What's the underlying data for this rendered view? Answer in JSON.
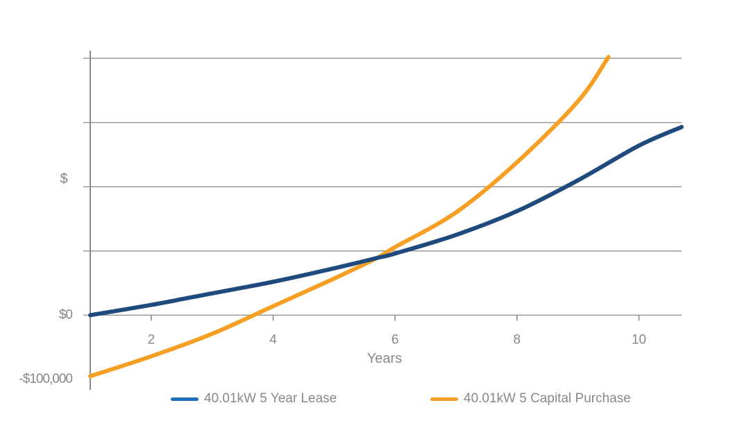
{
  "chart_data": {
    "type": "line",
    "xlabel": "Years",
    "ylabel": "$",
    "xlim": [
      1,
      10.7
    ],
    "ylim": [
      -100000,
      400000
    ],
    "x_ticks": [
      2,
      4,
      6,
      8,
      10
    ],
    "y_tick_labels": [
      {
        "value": 0,
        "label": "$0"
      },
      {
        "value": -100000,
        "label": "-$100,000"
      }
    ],
    "y_gridlines": [
      0,
      100000,
      200000,
      300000,
      400000
    ],
    "grid": "horizontal",
    "legend_position": "bottom",
    "series": [
      {
        "name": "40.01kW 5 Year Lease",
        "color": "#1f4a7d",
        "legend_color": "#1f6fb9",
        "x": [
          1,
          2,
          3,
          4,
          5,
          5.7,
          6,
          7,
          8,
          9,
          10,
          10.7
        ],
        "y": [
          0,
          16000,
          34000,
          52000,
          73000,
          89000,
          96000,
          125000,
          162000,
          210000,
          264000,
          293000
        ]
      },
      {
        "name": "40.01kW 5 Capital Purchase",
        "color": "#f5a025",
        "legend_color": "#f5a025",
        "x": [
          1,
          2,
          3,
          4,
          5,
          5.7,
          6,
          7,
          8,
          9,
          9.5
        ],
        "y": [
          -95000,
          -64000,
          -29000,
          14000,
          57000,
          89000,
          106000,
          160000,
          238000,
          333000,
          402000
        ]
      }
    ]
  }
}
